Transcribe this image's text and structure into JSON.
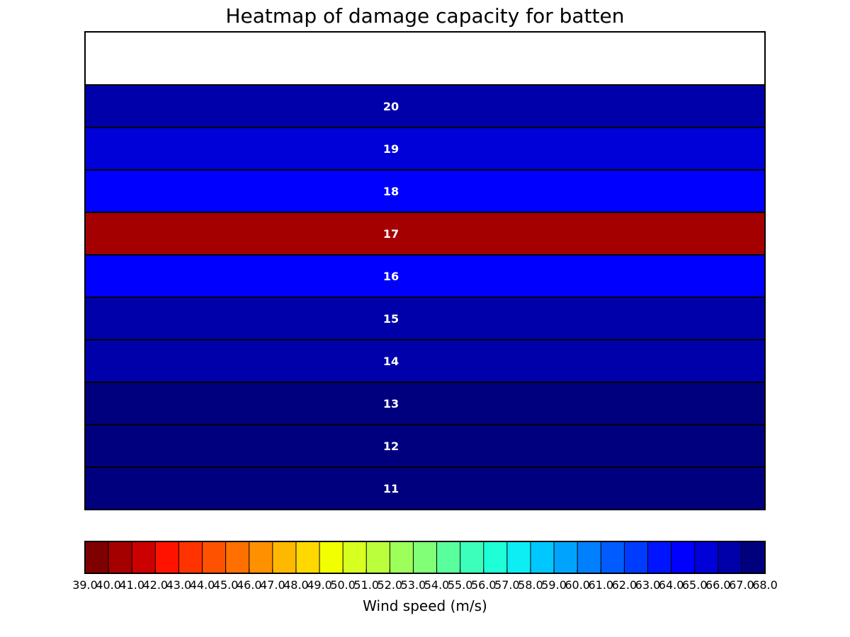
{
  "chart_data": {
    "type": "heatmap",
    "title": "Heatmap of damage capacity for batten",
    "rows": [
      {
        "label": "20",
        "wind_speed": 66.5
      },
      {
        "label": "19",
        "wind_speed": 65.5
      },
      {
        "label": "18",
        "wind_speed": 64.5
      },
      {
        "label": "17",
        "wind_speed": 40.5
      },
      {
        "label": "16",
        "wind_speed": 64.5
      },
      {
        "label": "15",
        "wind_speed": 66.5
      },
      {
        "label": "14",
        "wind_speed": 66.5
      },
      {
        "label": "13",
        "wind_speed": 67.5
      },
      {
        "label": "12",
        "wind_speed": 67.5
      },
      {
        "label": "11",
        "wind_speed": 67.5
      }
    ],
    "colorbar": {
      "label": "Wind speed (m/s)",
      "range": [
        39.0,
        68.0
      ],
      "ticks": [
        "39.0",
        "40.0",
        "41.0",
        "42.0",
        "43.0",
        "44.0",
        "45.0",
        "46.0",
        "47.0",
        "48.0",
        "49.0",
        "50.0",
        "51.0",
        "52.0",
        "53.0",
        "54.0",
        "55.0",
        "56.0",
        "57.0",
        "58.0",
        "59.0",
        "60.0",
        "61.0",
        "62.0",
        "63.0",
        "64.0",
        "65.0",
        "66.0",
        "67.0",
        "68.0"
      ],
      "colors": [
        "#7f0000",
        "#a50000",
        "#cc0000",
        "#ff1300",
        "#ff3300",
        "#ff5200",
        "#ff7000",
        "#ff9000",
        "#ffb800",
        "#ffd800",
        "#f2ff00",
        "#d7ff1f",
        "#bbff3c",
        "#9dff5a",
        "#80ff77",
        "#5aff9d",
        "#3cffbb",
        "#1fffd7",
        "#0ceef4",
        "#00c8ff",
        "#00a4ff",
        "#0080ff",
        "#005cff",
        "#003cff",
        "#0014ff",
        "#0000ff",
        "#0000d8",
        "#0000aa",
        "#00007f"
      ],
      "orientation": "horizontal"
    },
    "row_colors": {
      "20": "#0000aa",
      "19": "#0000d8",
      "18": "#0000ff",
      "17": "#a50000",
      "16": "#0000ff",
      "15": "#0000aa",
      "14": "#0000aa",
      "13": "#00007f",
      "12": "#00007f",
      "11": "#00007f"
    }
  }
}
